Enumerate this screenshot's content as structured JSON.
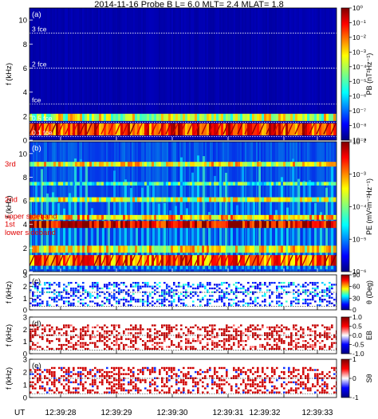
{
  "figure": {
    "title": "2014-11-16 Probe B L= 6.0 MLT= 2.4 MLAT=  1.8",
    "time_axis": {
      "prefix": "UT",
      "ticks": [
        "12:39:28",
        "12:39:29",
        "12:39:30",
        "12:39:31",
        "12:39:32",
        "12:39:33"
      ]
    }
  },
  "chart_data": [
    {
      "panel": "(a)",
      "type": "heatmap",
      "ylabel": "f (kHz)",
      "ylim": [
        0,
        11
      ],
      "yticks": [
        0,
        2,
        4,
        6,
        8,
        10
      ],
      "colorbar_label": "PB (nT²Hz⁻¹)",
      "colorbar_ticks": [
        "10⁰",
        "10⁻¹",
        "10⁻²",
        "10⁻³",
        "10⁻⁴",
        "10⁻⁵",
        "10⁻⁶",
        "10⁻⁷",
        "10⁻⁸",
        "10⁻⁹"
      ],
      "reference_lines": [
        {
          "label": "3 fce",
          "f_khz": 8.9
        },
        {
          "label": "2 fce",
          "f_khz": 6.0
        },
        {
          "label": "fce",
          "f_khz": 3.0
        },
        {
          "label": "0.5 fce",
          "f_khz": 1.5
        },
        {
          "label": "0.1 fce",
          "f_khz": 0.3
        }
      ],
      "bands_khz": [
        {
          "lo": 0.4,
          "hi": 1.4,
          "intensity": 0.85
        },
        {
          "lo": 1.6,
          "hi": 2.2,
          "intensity": 0.6
        }
      ],
      "grid": false
    },
    {
      "panel": "(b)",
      "type": "heatmap",
      "ylabel": "f (kHz)",
      "ylim": [
        0,
        11
      ],
      "yticks": [
        0,
        2,
        4,
        6,
        8,
        10
      ],
      "colorbar_label": "PE (mV²m⁻²Hz⁻¹)",
      "colorbar_ticks": [
        "10⁻²",
        "10⁻³",
        "10⁻⁴",
        "10⁻⁵",
        "10⁻⁶"
      ],
      "annotations": [
        "3rd",
        "2nd",
        "upper sideband",
        "1st",
        "lower sideband"
      ],
      "bands_khz": [
        {
          "lo": 0.5,
          "hi": 1.4,
          "intensity": 0.8
        },
        {
          "lo": 1.6,
          "hi": 2.2,
          "intensity": 0.65
        },
        {
          "lo": 3.7,
          "hi": 4.3,
          "intensity": 0.95
        },
        {
          "lo": 4.4,
          "hi": 4.8,
          "intensity": 0.7
        },
        {
          "lo": 5.9,
          "hi": 6.3,
          "intensity": 0.6
        },
        {
          "lo": 7.3,
          "hi": 7.6,
          "intensity": 0.45
        },
        {
          "lo": 8.9,
          "hi": 9.3,
          "intensity": 0.65
        }
      ],
      "grid": false
    },
    {
      "panel": "(c)",
      "type": "heatmap",
      "ylabel": "f (kHz)",
      "ylim": [
        0,
        3
      ],
      "yticks": [
        0,
        1,
        2,
        3
      ],
      "colorbar_label": "θ (Deg)",
      "colorbar_ticks": [
        "90",
        "60",
        "30",
        "0"
      ],
      "reference_lines": [
        {
          "f_khz": 1.5
        },
        {
          "f_khz": 0.3
        }
      ],
      "dominant_value": "0–30",
      "grid": false
    },
    {
      "panel": "(d)",
      "type": "heatmap",
      "ylabel": "f (kHz)",
      "ylim": [
        0,
        3
      ],
      "yticks": [
        0,
        1,
        2,
        3
      ],
      "colorbar_label": "EB",
      "colorbar_ticks": [
        "1.0",
        "0.5",
        "0.0",
        "-0.5",
        "-1.0"
      ],
      "reference_lines": [
        {
          "f_khz": 1.5
        },
        {
          "f_khz": 0.3
        }
      ],
      "dominant_value": "~1.0",
      "grid": false
    },
    {
      "panel": "(e)",
      "type": "heatmap",
      "ylabel": "f (kHz)",
      "ylim": [
        0,
        3
      ],
      "yticks": [
        0,
        1,
        2,
        3
      ],
      "colorbar_label": "Sθ",
      "colorbar_ticks": [
        "1",
        "0",
        "-1"
      ],
      "reference_lines": [
        {
          "f_khz": 1.5
        },
        {
          "f_khz": 0.3
        }
      ],
      "dominant_value": "1",
      "grid": false
    }
  ]
}
